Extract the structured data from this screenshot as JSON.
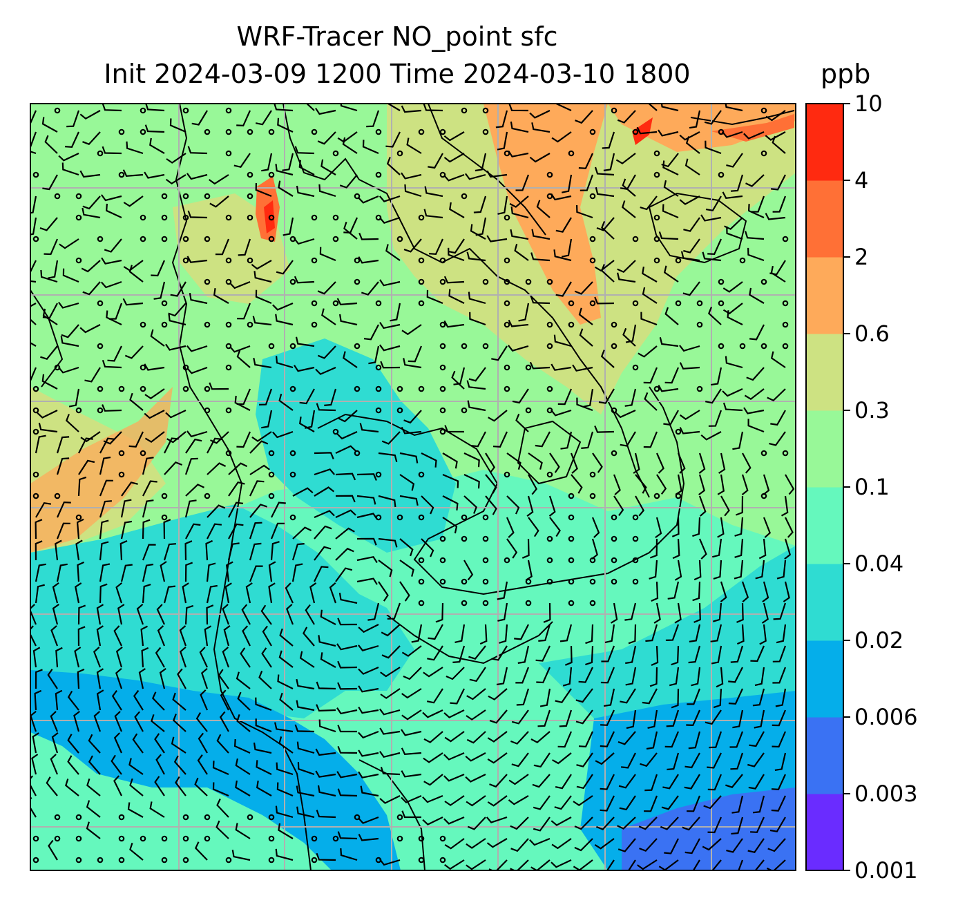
{
  "title": {
    "line1": "WRF-Tracer NO_point sfc",
    "line2": "Init 2024-03-09 1200 Time 2024-03-10 1800"
  },
  "colorbar": {
    "unit": "ppb",
    "ticks": [
      "0.001",
      "0.003",
      "0.006",
      "0.02",
      "0.04",
      "0.1",
      "0.3",
      "0.6",
      "2",
      "4",
      "10"
    ],
    "colors": [
      "#6a2cff",
      "#3a72f3",
      "#05aeea",
      "#2fdcd2",
      "#65f8bd",
      "#98f898",
      "#cde282",
      "#feaa5a",
      "#ff7036",
      "#ff2a10"
    ]
  },
  "map": {
    "grid": "on",
    "overlay": "wind barbs",
    "background_colors": {
      "ocean_south": "#05aeea",
      "ocean_mid": "#2fdcd2",
      "land_low": "#65f8bd",
      "land_green": "#98f898",
      "land_olive": "#cde282",
      "land_orange": "#feaa5a",
      "deep_blue": "#3a72f3"
    }
  }
}
